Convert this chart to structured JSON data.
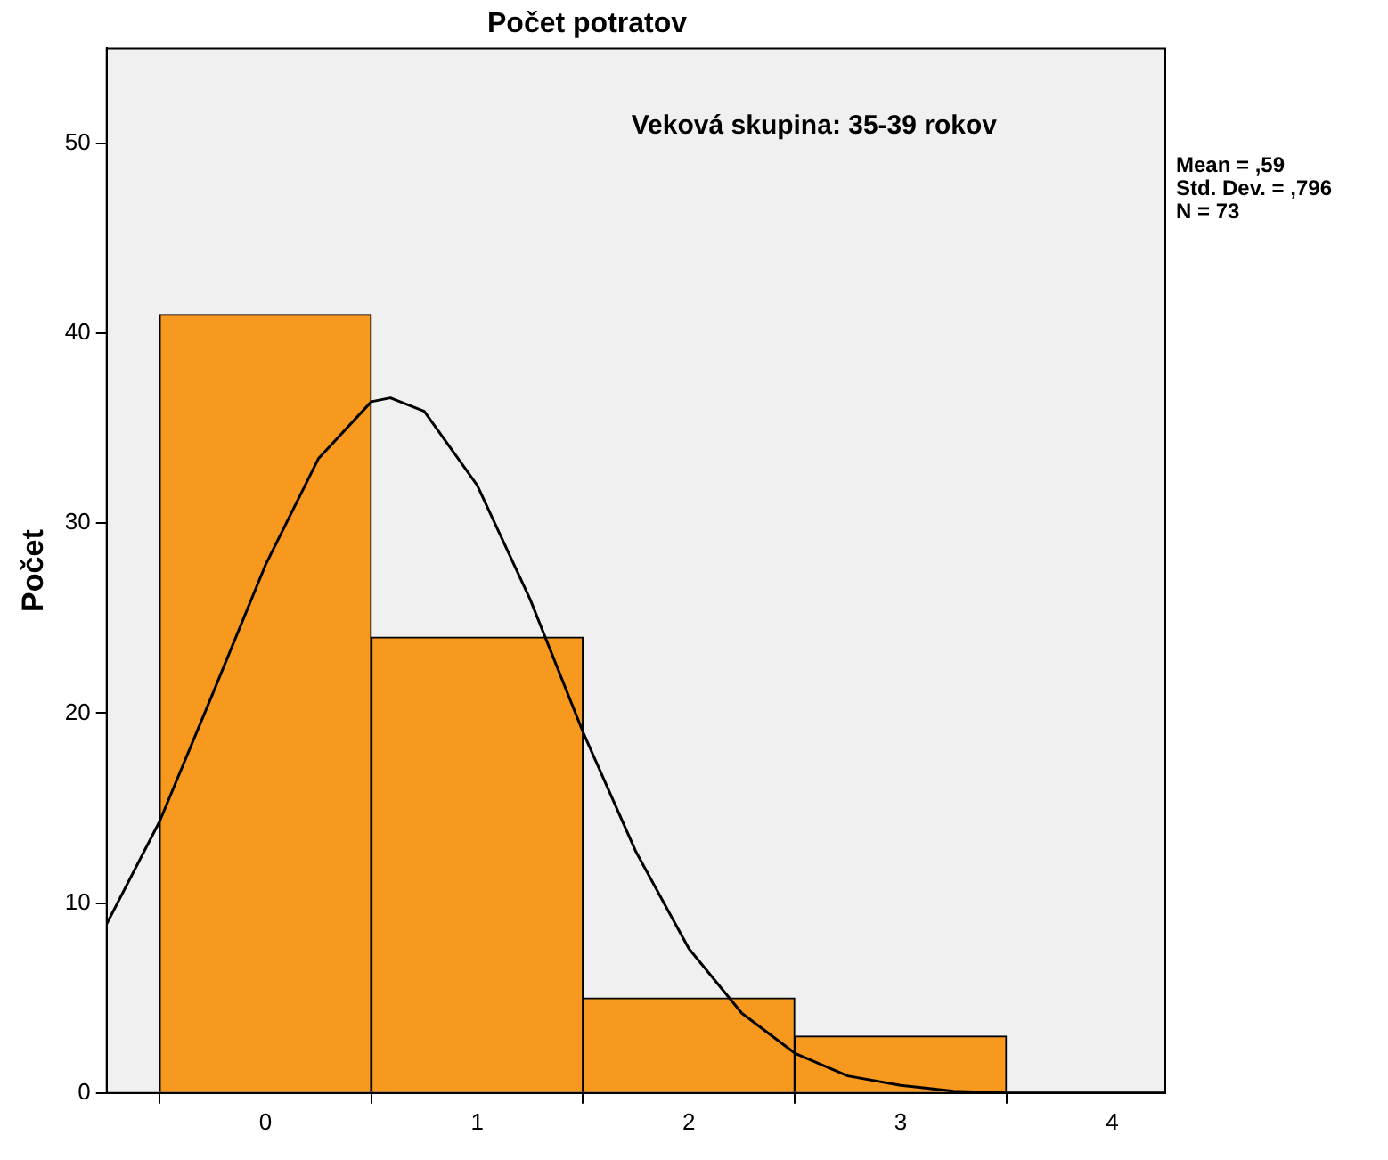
{
  "chart_data": {
    "type": "histogram",
    "title": "Počet potratov",
    "subtitle": "Veková skupina: 35-39 rokov",
    "ylabel": "Počet",
    "bins": [
      -0.5,
      0.5,
      1.5,
      2.5,
      3.5
    ],
    "values": [
      41,
      24,
      5,
      3
    ],
    "color": "#f7991f",
    "xlim": [
      -0.75,
      4.25
    ],
    "xticks": [
      0,
      1,
      2,
      3,
      4
    ],
    "ylim": [
      0,
      55
    ],
    "yticks": [
      0,
      10,
      20,
      30,
      40,
      50
    ],
    "series": [
      {
        "type": "line",
        "color": "#000000",
        "x": [
          -0.75,
          -0.5,
          -0.25,
          0,
          0.25,
          0.5,
          0.59,
          0.75,
          1,
          1.25,
          1.5,
          1.75,
          2,
          2.25,
          2.5,
          2.75,
          3,
          3.25,
          3.5,
          4,
          4.25
        ],
        "values": [
          8.9,
          14.3,
          21.0,
          27.8,
          33.4,
          36.4,
          36.6,
          35.9,
          32.0,
          26.0,
          19.0,
          12.7,
          7.6,
          4.2,
          2.1,
          0.9,
          0.4,
          0.1,
          0,
          0,
          0
        ]
      }
    ],
    "annotations": [
      "Mean = ,59",
      "Std. Dev. = ,796",
      "N = 73"
    ],
    "grid": false,
    "legend": false
  }
}
